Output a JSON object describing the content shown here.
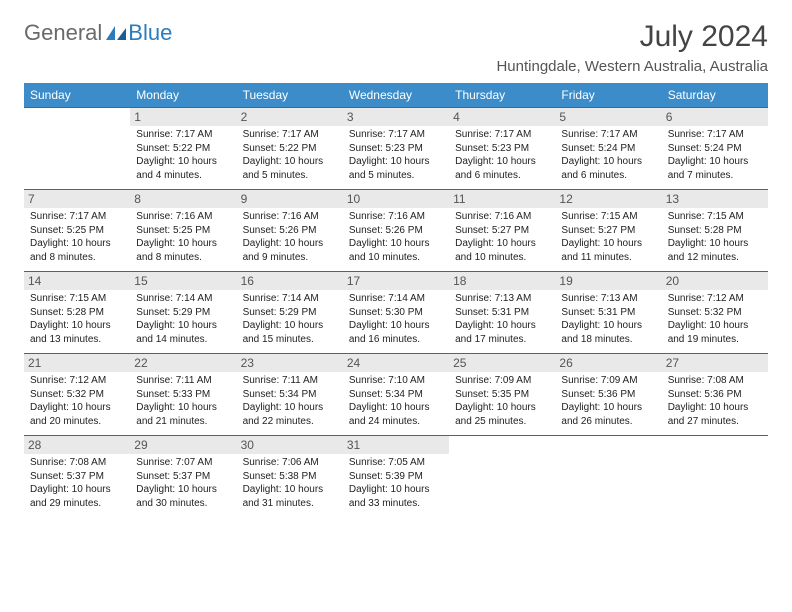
{
  "brand": {
    "part1": "General",
    "part2": "Blue"
  },
  "title": "July 2024",
  "location": "Huntingdale, Western Australia, Australia",
  "colors": {
    "header_bg": "#3b8cc9",
    "row_border": "#2b6ea5",
    "daynum_bg": "#e9e9e9",
    "text": "#333333",
    "brand_gray": "#6a6a6a",
    "brand_blue": "#2b7bbd"
  },
  "day_headers": [
    "Sunday",
    "Monday",
    "Tuesday",
    "Wednesday",
    "Thursday",
    "Friday",
    "Saturday"
  ],
  "weeks": [
    [
      null,
      {
        "n": "1",
        "sr": "Sunrise: 7:17 AM",
        "ss": "Sunset: 5:22 PM",
        "d1": "Daylight: 10 hours",
        "d2": "and 4 minutes."
      },
      {
        "n": "2",
        "sr": "Sunrise: 7:17 AM",
        "ss": "Sunset: 5:22 PM",
        "d1": "Daylight: 10 hours",
        "d2": "and 5 minutes."
      },
      {
        "n": "3",
        "sr": "Sunrise: 7:17 AM",
        "ss": "Sunset: 5:23 PM",
        "d1": "Daylight: 10 hours",
        "d2": "and 5 minutes."
      },
      {
        "n": "4",
        "sr": "Sunrise: 7:17 AM",
        "ss": "Sunset: 5:23 PM",
        "d1": "Daylight: 10 hours",
        "d2": "and 6 minutes."
      },
      {
        "n": "5",
        "sr": "Sunrise: 7:17 AM",
        "ss": "Sunset: 5:24 PM",
        "d1": "Daylight: 10 hours",
        "d2": "and 6 minutes."
      },
      {
        "n": "6",
        "sr": "Sunrise: 7:17 AM",
        "ss": "Sunset: 5:24 PM",
        "d1": "Daylight: 10 hours",
        "d2": "and 7 minutes."
      }
    ],
    [
      {
        "n": "7",
        "sr": "Sunrise: 7:17 AM",
        "ss": "Sunset: 5:25 PM",
        "d1": "Daylight: 10 hours",
        "d2": "and 8 minutes."
      },
      {
        "n": "8",
        "sr": "Sunrise: 7:16 AM",
        "ss": "Sunset: 5:25 PM",
        "d1": "Daylight: 10 hours",
        "d2": "and 8 minutes."
      },
      {
        "n": "9",
        "sr": "Sunrise: 7:16 AM",
        "ss": "Sunset: 5:26 PM",
        "d1": "Daylight: 10 hours",
        "d2": "and 9 minutes."
      },
      {
        "n": "10",
        "sr": "Sunrise: 7:16 AM",
        "ss": "Sunset: 5:26 PM",
        "d1": "Daylight: 10 hours",
        "d2": "and 10 minutes."
      },
      {
        "n": "11",
        "sr": "Sunrise: 7:16 AM",
        "ss": "Sunset: 5:27 PM",
        "d1": "Daylight: 10 hours",
        "d2": "and 10 minutes."
      },
      {
        "n": "12",
        "sr": "Sunrise: 7:15 AM",
        "ss": "Sunset: 5:27 PM",
        "d1": "Daylight: 10 hours",
        "d2": "and 11 minutes."
      },
      {
        "n": "13",
        "sr": "Sunrise: 7:15 AM",
        "ss": "Sunset: 5:28 PM",
        "d1": "Daylight: 10 hours",
        "d2": "and 12 minutes."
      }
    ],
    [
      {
        "n": "14",
        "sr": "Sunrise: 7:15 AM",
        "ss": "Sunset: 5:28 PM",
        "d1": "Daylight: 10 hours",
        "d2": "and 13 minutes."
      },
      {
        "n": "15",
        "sr": "Sunrise: 7:14 AM",
        "ss": "Sunset: 5:29 PM",
        "d1": "Daylight: 10 hours",
        "d2": "and 14 minutes."
      },
      {
        "n": "16",
        "sr": "Sunrise: 7:14 AM",
        "ss": "Sunset: 5:29 PM",
        "d1": "Daylight: 10 hours",
        "d2": "and 15 minutes."
      },
      {
        "n": "17",
        "sr": "Sunrise: 7:14 AM",
        "ss": "Sunset: 5:30 PM",
        "d1": "Daylight: 10 hours",
        "d2": "and 16 minutes."
      },
      {
        "n": "18",
        "sr": "Sunrise: 7:13 AM",
        "ss": "Sunset: 5:31 PM",
        "d1": "Daylight: 10 hours",
        "d2": "and 17 minutes."
      },
      {
        "n": "19",
        "sr": "Sunrise: 7:13 AM",
        "ss": "Sunset: 5:31 PM",
        "d1": "Daylight: 10 hours",
        "d2": "and 18 minutes."
      },
      {
        "n": "20",
        "sr": "Sunrise: 7:12 AM",
        "ss": "Sunset: 5:32 PM",
        "d1": "Daylight: 10 hours",
        "d2": "and 19 minutes."
      }
    ],
    [
      {
        "n": "21",
        "sr": "Sunrise: 7:12 AM",
        "ss": "Sunset: 5:32 PM",
        "d1": "Daylight: 10 hours",
        "d2": "and 20 minutes."
      },
      {
        "n": "22",
        "sr": "Sunrise: 7:11 AM",
        "ss": "Sunset: 5:33 PM",
        "d1": "Daylight: 10 hours",
        "d2": "and 21 minutes."
      },
      {
        "n": "23",
        "sr": "Sunrise: 7:11 AM",
        "ss": "Sunset: 5:34 PM",
        "d1": "Daylight: 10 hours",
        "d2": "and 22 minutes."
      },
      {
        "n": "24",
        "sr": "Sunrise: 7:10 AM",
        "ss": "Sunset: 5:34 PM",
        "d1": "Daylight: 10 hours",
        "d2": "and 24 minutes."
      },
      {
        "n": "25",
        "sr": "Sunrise: 7:09 AM",
        "ss": "Sunset: 5:35 PM",
        "d1": "Daylight: 10 hours",
        "d2": "and 25 minutes."
      },
      {
        "n": "26",
        "sr": "Sunrise: 7:09 AM",
        "ss": "Sunset: 5:36 PM",
        "d1": "Daylight: 10 hours",
        "d2": "and 26 minutes."
      },
      {
        "n": "27",
        "sr": "Sunrise: 7:08 AM",
        "ss": "Sunset: 5:36 PM",
        "d1": "Daylight: 10 hours",
        "d2": "and 27 minutes."
      }
    ],
    [
      {
        "n": "28",
        "sr": "Sunrise: 7:08 AM",
        "ss": "Sunset: 5:37 PM",
        "d1": "Daylight: 10 hours",
        "d2": "and 29 minutes."
      },
      {
        "n": "29",
        "sr": "Sunrise: 7:07 AM",
        "ss": "Sunset: 5:37 PM",
        "d1": "Daylight: 10 hours",
        "d2": "and 30 minutes."
      },
      {
        "n": "30",
        "sr": "Sunrise: 7:06 AM",
        "ss": "Sunset: 5:38 PM",
        "d1": "Daylight: 10 hours",
        "d2": "and 31 minutes."
      },
      {
        "n": "31",
        "sr": "Sunrise: 7:05 AM",
        "ss": "Sunset: 5:39 PM",
        "d1": "Daylight: 10 hours",
        "d2": "and 33 minutes."
      },
      null,
      null,
      null
    ]
  ]
}
